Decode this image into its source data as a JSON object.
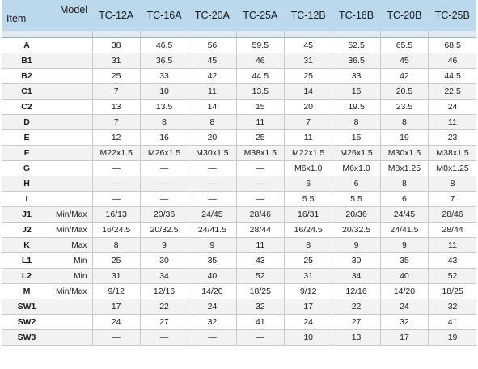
{
  "header": {
    "item_label": "Item",
    "model_label": "Model",
    "models": [
      "TC-12A",
      "TC-16A",
      "TC-20A",
      "TC-25A",
      "TC-12B",
      "TC-16B",
      "TC-20B",
      "TC-25B"
    ]
  },
  "rows": [
    {
      "label": "A",
      "sub": "",
      "values": [
        "38",
        "46.5",
        "56",
        "59.5",
        "45",
        "52.5",
        "65.5",
        "68.5"
      ]
    },
    {
      "label": "B1",
      "sub": "",
      "values": [
        "31",
        "36.5",
        "45",
        "46",
        "31",
        "36.5",
        "45",
        "46"
      ]
    },
    {
      "label": "B2",
      "sub": "",
      "values": [
        "25",
        "33",
        "42",
        "44.5",
        "25",
        "33",
        "42",
        "44.5"
      ]
    },
    {
      "label": "C1",
      "sub": "",
      "values": [
        "7",
        "10",
        "11",
        "13.5",
        "14",
        "16",
        "20.5",
        "22.5"
      ]
    },
    {
      "label": "C2",
      "sub": "",
      "values": [
        "13",
        "13.5",
        "14",
        "15",
        "20",
        "19.5",
        "23.5",
        "24"
      ]
    },
    {
      "label": "D",
      "sub": "",
      "values": [
        "7",
        "8",
        "8",
        "11",
        "7",
        "8",
        "8",
        "11"
      ]
    },
    {
      "label": "E",
      "sub": "",
      "values": [
        "12",
        "16",
        "20",
        "25",
        "11",
        "15",
        "19",
        "23"
      ]
    },
    {
      "label": "F",
      "sub": "",
      "values": [
        "M22x1.5",
        "M26x1.5",
        "M30x1.5",
        "M38x1.5",
        "M22x1.5",
        "M26x1.5",
        "M30x1.5",
        "M38x1.5"
      ]
    },
    {
      "label": "G",
      "sub": "",
      "values": [
        "—",
        "—",
        "—",
        "—",
        "M6x1.0",
        "M6x1.0",
        "M8x1.25",
        "M8x1.25"
      ]
    },
    {
      "label": "H",
      "sub": "",
      "values": [
        "—",
        "—",
        "—",
        "—",
        "6",
        "6",
        "8",
        "8"
      ]
    },
    {
      "label": "I",
      "sub": "",
      "values": [
        "—",
        "—",
        "—",
        "—",
        "5.5",
        "5.5",
        "6",
        "7"
      ]
    },
    {
      "label": "J1",
      "sub": "Min/Max",
      "values": [
        "16/13",
        "20/36",
        "24/45",
        "28/46",
        "16/31",
        "20/36",
        "24/45",
        "28/46"
      ]
    },
    {
      "label": "J2",
      "sub": "Min/Max",
      "values": [
        "16/24.5",
        "20/32.5",
        "24/41.5",
        "28/44",
        "16/24.5",
        "20/32.5",
        "24/41.5",
        "28/44"
      ]
    },
    {
      "label": "K",
      "sub": "Max",
      "values": [
        "8",
        "9",
        "9",
        "11",
        "8",
        "9",
        "9",
        "11"
      ]
    },
    {
      "label": "L1",
      "sub": "Min",
      "values": [
        "25",
        "30",
        "35",
        "43",
        "25",
        "30",
        "35",
        "43"
      ]
    },
    {
      "label": "L2",
      "sub": "Min",
      "values": [
        "31",
        "34",
        "40",
        "52",
        "31",
        "34",
        "40",
        "52"
      ]
    },
    {
      "label": "M",
      "sub": "Min/Max",
      "values": [
        "9/12",
        "12/16",
        "14/20",
        "18/25",
        "9/12",
        "12/16",
        "14/20",
        "18/25"
      ]
    },
    {
      "label": "SW1",
      "sub": "",
      "values": [
        "17",
        "22",
        "24",
        "32",
        "17",
        "22",
        "24",
        "32"
      ]
    },
    {
      "label": "SW2",
      "sub": "",
      "values": [
        "24",
        "27",
        "32",
        "41",
        "24",
        "27",
        "32",
        "41"
      ]
    },
    {
      "label": "SW3",
      "sub": "",
      "values": [
        "—",
        "—",
        "—",
        "—",
        "10",
        "13",
        "17",
        "19"
      ]
    }
  ],
  "colors": {
    "header_bg": "#bcd8ec",
    "spacer_bg": "#dfeaf3",
    "row_alt_bg": "#f2f2f2",
    "grid_line": "#c9c9c9"
  }
}
